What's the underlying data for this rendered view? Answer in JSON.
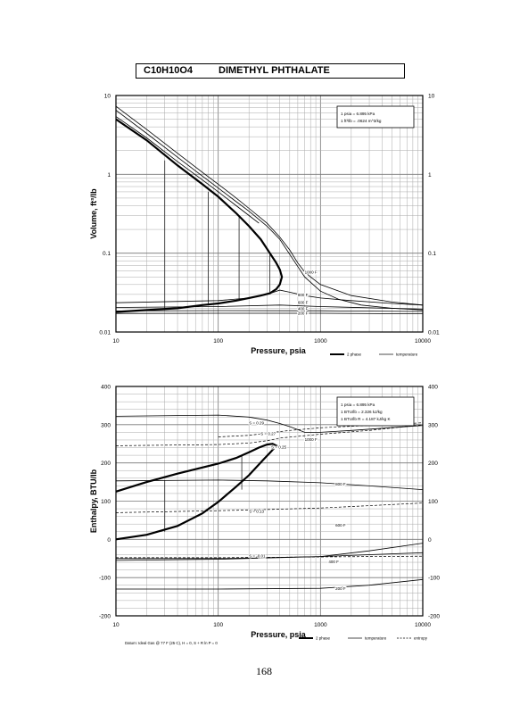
{
  "header": {
    "formula": "C10H10O4",
    "compound": "DIMETHYL PHTHALATE"
  },
  "page_number": "168",
  "chart_data": [
    {
      "type": "line",
      "title": "",
      "xlabel": "Pressure,  psia",
      "ylabel": "Volume,  ft^3/lb",
      "xscale": "log",
      "yscale": "log",
      "xlim": [
        10,
        10000
      ],
      "ylim": [
        0.01,
        10
      ],
      "x_ticks": [
        "10",
        "100",
        "1000",
        "10000"
      ],
      "y_ticks": [
        "0.01",
        "0.1",
        "1",
        "10"
      ],
      "conversion_box": [
        "1 psia  =  6.895 kPa",
        "1 ft^3/lb  =  .0624 m^3/kg"
      ],
      "legend": [
        "2 phase",
        "temperature"
      ],
      "legend_placement": "bottom-right",
      "grid": true,
      "series": [
        {
          "kind": "2 phase",
          "x": [
            10,
            20,
            40,
            70,
            100,
            150,
            200,
            260,
            320,
            370,
            400,
            420,
            400,
            370,
            320,
            260,
            200,
            150,
            100,
            70,
            40,
            20,
            10
          ],
          "y": [
            5,
            2.7,
            1.3,
            0.75,
            0.52,
            0.32,
            0.22,
            0.15,
            0.1,
            0.075,
            0.062,
            0.05,
            0.04,
            0.035,
            0.031,
            0.029,
            0.027,
            0.025,
            0.023,
            0.022,
            0.02,
            0.019,
            0.018
          ]
        },
        {
          "kind": "temperature",
          "x": [
            10,
            20,
            40,
            70,
            100,
            150,
            200,
            250
          ],
          "y": [
            5.4,
            2.9,
            1.45,
            0.85,
            0.6,
            0.4,
            0.3,
            0.24
          ]
        },
        {
          "kind": "temperature",
          "x": [
            10,
            20,
            40,
            70,
            100,
            150,
            200,
            300,
            400,
            550,
            700,
            1000,
            1500,
            2500,
            5000,
            10000
          ],
          "y": [
            6.5,
            3.3,
            1.65,
            0.95,
            0.67,
            0.45,
            0.34,
            0.22,
            0.15,
            0.08,
            0.05,
            0.033,
            0.026,
            0.022,
            0.02,
            0.019
          ]
        },
        {
          "kind": "temperature",
          "x": [
            10,
            20,
            40,
            70,
            100,
            150,
            200,
            300,
            400,
            500,
            600,
            700,
            800,
            1000,
            2000,
            5000,
            10000
          ],
          "y": [
            7.3,
            3.7,
            1.85,
            1.06,
            0.75,
            0.5,
            0.37,
            0.24,
            0.16,
            0.11,
            0.075,
            0.058,
            0.05,
            0.04,
            0.029,
            0.024,
            0.022
          ]
        },
        {
          "kind": "temperature",
          "x": [
            10,
            100,
            200,
            300,
            400,
            500,
            700,
            1000,
            2000,
            5000,
            10000
          ],
          "y": [
            0.0235,
            0.025,
            0.027,
            0.03,
            0.034,
            0.032,
            0.029,
            0.027,
            0.025,
            0.023,
            0.022
          ]
        },
        {
          "kind": "temperature",
          "x": [
            10,
            100,
            400,
            1000,
            10000
          ],
          "y": [
            0.0205,
            0.021,
            0.022,
            0.021,
            0.0195
          ]
        },
        {
          "kind": "temperature",
          "x": [
            10,
            100,
            1000,
            10000
          ],
          "y": [
            0.0185,
            0.0187,
            0.0186,
            0.0182
          ]
        },
        {
          "kind": "temperature",
          "x": [
            10,
            100,
            1000,
            10000
          ],
          "y": [
            0.0172,
            0.0173,
            0.0173,
            0.017
          ]
        }
      ],
      "verticals": [
        {
          "x": 30,
          "y": [
            0.019,
            1.5
          ]
        },
        {
          "x": 80,
          "y": [
            0.022,
            0.6
          ]
        },
        {
          "x": 160,
          "y": [
            0.026,
            0.3
          ]
        },
        {
          "x": 320,
          "y": [
            0.032,
            0.1
          ]
        }
      ],
      "annotations": [
        {
          "text": "1000 F",
          "x": 700,
          "y": 0.058
        },
        {
          "text": "800 F",
          "x": 600,
          "y": 0.03
        },
        {
          "text": "600 F",
          "x": 600,
          "y": 0.024
        },
        {
          "text": "400 F",
          "x": 600,
          "y": 0.02
        },
        {
          "text": "200 F",
          "x": 600,
          "y": 0.0175
        }
      ]
    },
    {
      "type": "line",
      "title": "",
      "xlabel": "Pressure,  psia",
      "ylabel": "Enthalpy,  BTU/lb",
      "xscale": "log",
      "xlim": [
        10,
        10000
      ],
      "ylim": [
        -200,
        400
      ],
      "x_ticks": [
        "10",
        "100",
        "1000",
        "10000"
      ],
      "y_ticks": [
        "-200",
        "-100",
        "0",
        "100",
        "200",
        "300",
        "400"
      ],
      "conversion_box": [
        "1 psia  =  6.895 kPa",
        "1 BTU/lb  =  2.326 kJ/kg",
        "1 BTU/lb R  =  4.187 kJ/kg K"
      ],
      "legend": [
        "2 phase",
        "temperature",
        "entropy"
      ],
      "legend_placement": "bottom-right",
      "footnote": "Datum: Ideal Gas @ 77 F (25 C),  H = 0,  S + R ln P = 0",
      "grid": true,
      "series": [
        {
          "kind": "2 phase",
          "x": [
            10,
            20,
            40,
            70,
            100,
            150,
            200,
            250,
            300,
            340,
            370,
            330,
            280,
            200,
            150,
            100,
            70,
            40,
            20,
            10
          ],
          "y": [
            125,
            150,
            172,
            188,
            198,
            213,
            228,
            240,
            248,
            250,
            245,
            230,
            210,
            168,
            138,
            98,
            68,
            35,
            12,
            0
          ]
        },
        {
          "kind": "temperature",
          "x": [
            10,
            100,
            200,
            300,
            400,
            500,
            600,
            700,
            1000,
            2000,
            10000
          ],
          "y": [
            322,
            325,
            320,
            312,
            303,
            295,
            287,
            280,
            280,
            285,
            298
          ]
        },
        {
          "kind": "temperature",
          "x": [
            10,
            100,
            300,
            1000,
            3000,
            10000
          ],
          "y": [
            153,
            155,
            153,
            148,
            140,
            130
          ]
        },
        {
          "kind": "temperature",
          "x": [
            10,
            100,
            1000,
            3000,
            10000
          ],
          "y": [
            -50,
            -50,
            -45,
            -30,
            -10
          ]
        },
        {
          "kind": "temperature",
          "x": [
            10,
            100,
            1000,
            10000
          ],
          "y": [
            -55,
            -52,
            -45,
            -35
          ]
        },
        {
          "kind": "temperature",
          "x": [
            10,
            100,
            1000,
            3000,
            10000
          ],
          "y": [
            -130,
            -130,
            -128,
            -120,
            -105
          ]
        },
        {
          "kind": "entropy",
          "x": [
            10,
            100,
            200,
            300,
            400,
            1000,
            3000,
            10000
          ],
          "y": [
            245,
            248,
            252,
            258,
            265,
            275,
            285,
            300
          ]
        },
        {
          "kind": "entropy",
          "x": [
            100,
            200,
            300,
            500,
            1000,
            10000
          ],
          "y": [
            268,
            272,
            278,
            285,
            292,
            305
          ]
        },
        {
          "kind": "entropy",
          "x": [
            10,
            100,
            300,
            1000,
            3000,
            10000
          ],
          "y": [
            70,
            75,
            78,
            82,
            88,
            95
          ]
        },
        {
          "kind": "entropy",
          "x": [
            10,
            100,
            1000,
            10000
          ],
          "y": [
            -48,
            -48,
            -46,
            -44
          ]
        }
      ],
      "verticals": [
        {
          "x": 30,
          "y": [
            20,
            155
          ]
        },
        {
          "x": 170,
          "y": [
            130,
            220
          ]
        }
      ],
      "annotations": [
        {
          "text": "S = 0.29",
          "x": 200,
          "y": 306
        },
        {
          "text": "S = 0.27",
          "x": 260,
          "y": 278
        },
        {
          "text": "S = 0.25",
          "x": 330,
          "y": 242
        },
        {
          "text": "1000 F",
          "x": 700,
          "y": 262
        },
        {
          "text": "S = 0.13",
          "x": 200,
          "y": 74
        },
        {
          "text": "800 F",
          "x": 1400,
          "y": 145
        },
        {
          "text": "600 F",
          "x": 1400,
          "y": 38
        },
        {
          "text": "S = -0.01",
          "x": 200,
          "y": -42
        },
        {
          "text": "400 F",
          "x": 1200,
          "y": -58
        },
        {
          "text": "200 F",
          "x": 1400,
          "y": -128
        }
      ]
    }
  ]
}
